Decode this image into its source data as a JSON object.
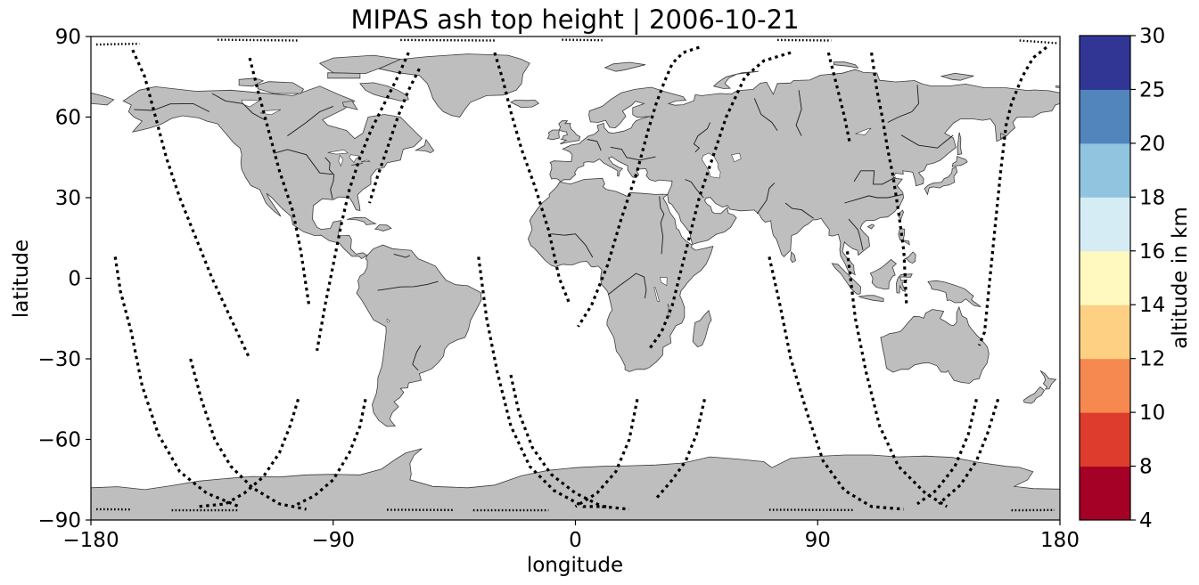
{
  "title": "MIPAS ash top height | 2006-10-21",
  "map": {
    "type": "map",
    "projection": "PlateCarree",
    "xlabel": "longitude",
    "ylabel": "latitude",
    "xlim": [
      -180,
      180
    ],
    "ylim": [
      -90,
      90
    ],
    "xticks": [
      -180,
      -90,
      0,
      90,
      180
    ],
    "yticks": [
      -90,
      -60,
      -30,
      0,
      30,
      60,
      90
    ],
    "xtick_labels": [
      "−180",
      "−90",
      "0",
      "90",
      "180"
    ],
    "ytick_labels": [
      "−90",
      "−60",
      "−30",
      "0",
      "30",
      "60",
      "90"
    ],
    "land_color": "#bebebe",
    "ocean_color": "#ffffff",
    "track_color": "#000000",
    "grid": false
  },
  "colorbar": {
    "label": "altitude in km",
    "bounds": [
      4,
      8,
      10,
      12,
      14,
      16,
      18,
      20,
      25,
      30
    ],
    "tick_labels": [
      "4",
      "8",
      "10",
      "12",
      "14",
      "16",
      "18",
      "20",
      "25",
      "30"
    ],
    "colors": [
      "#a50026",
      "#d73027",
      "#f46d43",
      "#fdae61",
      "#fee090",
      "#ffffbf",
      "#e0f3f8",
      "#abd9e9",
      "#74add1",
      "#4575b4",
      "#313695"
    ],
    "bin_colors": [
      "#a50026",
      "#de3d2d",
      "#f6894f",
      "#fdd083",
      "#fff9bf",
      "#d6ecf4",
      "#91c4df",
      "#5185bc",
      "#313695"
    ]
  },
  "chart_data": {
    "type": "scatter",
    "title": "MIPAS ash top height | 2006-10-21",
    "xlabel": "longitude",
    "ylabel": "latitude",
    "xlim": [
      -180,
      180
    ],
    "ylim": [
      -90,
      90
    ],
    "series": [
      {
        "values": [
          [
            -164.5,
            85
          ],
          [
            -160,
            75
          ],
          [
            -156,
            60
          ],
          [
            -152,
            45
          ],
          [
            -147,
            30
          ],
          [
            -141,
            15
          ],
          [
            -135,
            0
          ],
          [
            -128,
            -15
          ],
          [
            -121,
            -30
          ]
        ]
      },
      {
        "values": [
          [
            -121,
            82
          ],
          [
            -118,
            70
          ],
          [
            -114,
            55
          ],
          [
            -110,
            40
          ],
          [
            -105,
            25
          ],
          [
            -102,
            10
          ],
          [
            -99,
            -10
          ]
        ]
      },
      {
        "values": [
          [
            -62,
            84
          ],
          [
            -66,
            75
          ],
          [
            -71,
            65
          ],
          [
            -76,
            55
          ],
          [
            -80,
            45
          ],
          [
            -84,
            33
          ],
          [
            -87,
            20
          ],
          [
            -90,
            5
          ],
          [
            -93,
            -10
          ],
          [
            -96,
            -27
          ]
        ]
      },
      {
        "values": [
          [
            -58,
            78
          ],
          [
            -62,
            70
          ],
          [
            -66,
            60
          ],
          [
            -70,
            48
          ],
          [
            -73.5,
            38
          ],
          [
            -76.5,
            28
          ]
        ]
      },
      {
        "values": [
          [
            -30,
            84
          ],
          [
            -27,
            74
          ],
          [
            -24,
            62
          ],
          [
            -20,
            48
          ],
          [
            -15,
            34
          ],
          [
            -10,
            18
          ],
          [
            -6,
            0
          ],
          [
            -2,
            -10
          ]
        ]
      },
      {
        "values": [
          [
            46,
            86
          ],
          [
            40,
            84
          ],
          [
            36,
            80
          ],
          [
            33,
            73
          ],
          [
            30,
            65
          ],
          [
            27,
            55
          ],
          [
            23,
            40
          ],
          [
            17,
            22
          ],
          [
            12,
            5
          ],
          [
            6,
            -10
          ],
          [
            1,
            -18
          ]
        ]
      },
      {
        "values": [
          [
            80,
            84
          ],
          [
            70,
            81
          ],
          [
            63,
            75
          ],
          [
            56,
            60
          ],
          [
            51,
            45
          ],
          [
            46,
            30
          ],
          [
            41,
            10
          ],
          [
            36,
            -10
          ],
          [
            32,
            -20
          ],
          [
            27,
            -27
          ]
        ]
      },
      {
        "values": [
          [
            -171,
            8
          ],
          [
            -169,
            -5
          ],
          [
            -165,
            -20
          ],
          [
            -161,
            -40
          ],
          [
            -155,
            -58
          ],
          [
            -147,
            -72
          ],
          [
            -137,
            -80
          ],
          [
            -125,
            -85
          ]
        ]
      },
      {
        "values": [
          [
            -143,
            -30
          ],
          [
            -139,
            -45
          ],
          [
            -134,
            -60
          ],
          [
            -128,
            -70
          ],
          [
            -120,
            -78
          ],
          [
            -110,
            -84
          ],
          [
            -100,
            -86
          ]
        ]
      },
      {
        "values": [
          [
            -103,
            -45
          ],
          [
            -106,
            -55
          ],
          [
            -110,
            -65
          ],
          [
            -116,
            -74
          ],
          [
            -123,
            -80
          ],
          [
            -130,
            -84
          ],
          [
            -140,
            -85
          ]
        ]
      },
      {
        "values": [
          [
            -78,
            -45
          ],
          [
            -80,
            -55
          ],
          [
            -84,
            -65
          ],
          [
            -90,
            -75
          ],
          [
            -97,
            -81
          ],
          [
            -105,
            -85
          ]
        ]
      },
      {
        "values": [
          [
            -36,
            8
          ],
          [
            -33,
            -15
          ],
          [
            -29,
            -35
          ],
          [
            -24,
            -55
          ],
          [
            -17,
            -70
          ],
          [
            -8,
            -79
          ],
          [
            3,
            -85
          ],
          [
            12,
            -85
          ]
        ]
      },
      {
        "values": [
          [
            -24,
            -36
          ],
          [
            -21,
            -50
          ],
          [
            -16,
            -63
          ],
          [
            -9,
            -73
          ],
          [
            0,
            -80
          ],
          [
            10,
            -85
          ],
          [
            20,
            -86
          ]
        ]
      },
      {
        "values": [
          [
            23,
            -45
          ],
          [
            20,
            -60
          ],
          [
            15,
            -72
          ],
          [
            8,
            -80
          ],
          [
            0,
            -85
          ]
        ]
      },
      {
        "values": [
          [
            48,
            -45
          ],
          [
            45,
            -58
          ],
          [
            41,
            -68
          ],
          [
            36,
            -75
          ],
          [
            30,
            -82
          ]
        ]
      },
      {
        "values": [
          [
            72,
            8
          ],
          [
            76,
            -10
          ],
          [
            80,
            -30
          ],
          [
            86,
            -50
          ],
          [
            92,
            -68
          ],
          [
            100,
            -79
          ],
          [
            110,
            -85
          ],
          [
            122,
            -86
          ]
        ]
      },
      {
        "values": [
          [
            101,
            10
          ],
          [
            104,
            -15
          ],
          [
            108,
            -35
          ],
          [
            113,
            -55
          ],
          [
            120,
            -70
          ],
          [
            130,
            -80
          ],
          [
            138,
            -85
          ]
        ]
      },
      {
        "values": [
          [
            149,
            -45
          ],
          [
            146,
            -58
          ],
          [
            141,
            -70
          ],
          [
            134,
            -79
          ],
          [
            127,
            -84
          ]
        ]
      },
      {
        "values": [
          [
            157,
            -45
          ],
          [
            153,
            -58
          ],
          [
            149,
            -68
          ],
          [
            143,
            -77
          ],
          [
            135,
            -84
          ]
        ]
      },
      {
        "values": [
          [
            175,
            86
          ],
          [
            170,
            82
          ],
          [
            166,
            75
          ],
          [
            162,
            65
          ],
          [
            160,
            57
          ],
          [
            158,
            40
          ],
          [
            156,
            20
          ],
          [
            154,
            0
          ],
          [
            152,
            -20
          ],
          [
            150,
            -25
          ]
        ]
      },
      {
        "values": [
          [
            110,
            84
          ],
          [
            112,
            70
          ],
          [
            114,
            60
          ],
          [
            116,
            48
          ],
          [
            118,
            38
          ],
          [
            120,
            25
          ],
          [
            122,
            10
          ],
          [
            123,
            -10
          ]
        ]
      },
      {
        "values": [
          [
            94,
            84
          ],
          [
            97,
            72
          ],
          [
            100,
            60
          ],
          [
            102,
            50
          ]
        ]
      }
    ]
  }
}
